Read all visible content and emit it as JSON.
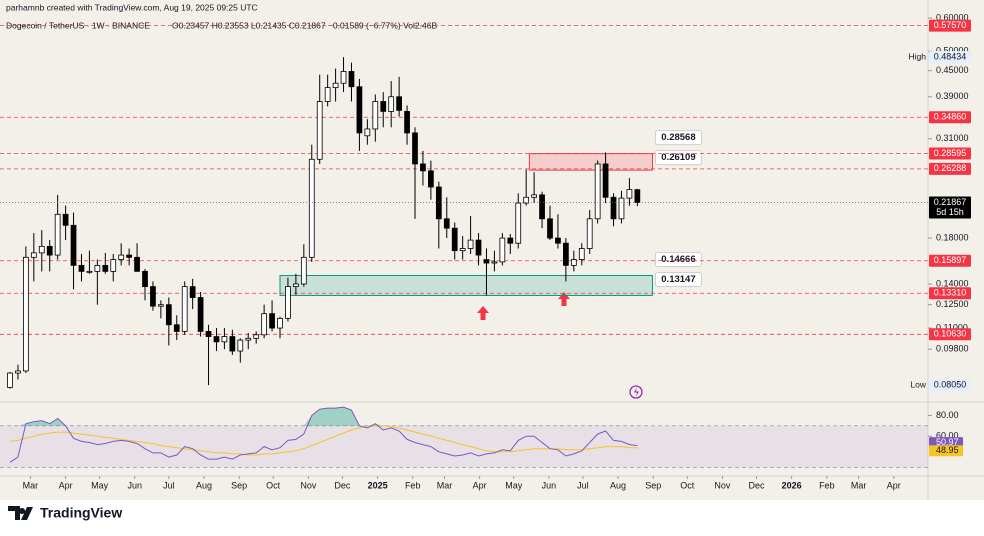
{
  "chart_data": {
    "type": "candlestick",
    "header": "parhamnb created with TradingView.com, Aug 19, 2025 09:25 UTC",
    "legend": "Dogecoin / TetherUS · 1W · BINANCE",
    "ohlc_text": "O0.23457  H0.23553  L0.21435  C0.21867  −0.01589 (−6.77%)  Vol2.46B",
    "brand": "TradingView",
    "log_scale": true,
    "ylim": [
      0.0742,
      0.627
    ],
    "yticks": [
      {
        "value": 0.6,
        "label": "0.60000"
      },
      {
        "value": 0.5,
        "label": "0.50000"
      },
      {
        "value": 0.45,
        "label": "0.45000"
      },
      {
        "value": 0.39,
        "label": "0.39000"
      },
      {
        "value": 0.31,
        "label": "0.31000"
      },
      {
        "value": 0.18,
        "label": "0.18000"
      },
      {
        "value": 0.14,
        "label": "0.14000"
      },
      {
        "value": 0.125,
        "label": "0.12500"
      },
      {
        "value": 0.11,
        "label": "0.11000"
      },
      {
        "value": 0.098,
        "label": "0.09800"
      }
    ],
    "xlim": [
      -1.26,
      115.6
    ],
    "xticks": [
      {
        "value": 2.57,
        "label": "Mar"
      },
      {
        "value": 7,
        "label": "Apr"
      },
      {
        "value": 11.29,
        "label": "May"
      },
      {
        "value": 15.71,
        "label": "Jun"
      },
      {
        "value": 20,
        "label": "Jul"
      },
      {
        "value": 24.43,
        "label": "Aug"
      },
      {
        "value": 28.86,
        "label": "Sep"
      },
      {
        "value": 33.14,
        "label": "Oct"
      },
      {
        "value": 37.57,
        "label": "Nov"
      },
      {
        "value": 41.86,
        "label": "Dec"
      },
      {
        "value": 46.29,
        "label": "2025"
      },
      {
        "value": 50.71,
        "label": "Feb"
      },
      {
        "value": 54.71,
        "label": "Mar"
      },
      {
        "value": 59.14,
        "label": "Apr"
      },
      {
        "value": 63.43,
        "label": "May"
      },
      {
        "value": 67.86,
        "label": "Jun"
      },
      {
        "value": 72.14,
        "label": "Jul"
      },
      {
        "value": 76.57,
        "label": "Aug"
      },
      {
        "value": 81,
        "label": "Sep"
      },
      {
        "value": 85.29,
        "label": "Oct"
      },
      {
        "value": 89.71,
        "label": "Nov"
      },
      {
        "value": 94,
        "label": "Dec"
      },
      {
        "value": 98.43,
        "label": "2026"
      },
      {
        "value": 102.86,
        "label": "Feb"
      },
      {
        "value": 106.86,
        "label": "Mar"
      },
      {
        "value": 111.29,
        "label": "Apr"
      }
    ],
    "up_color": "#ffffff",
    "down_color": "#000000",
    "candles": [
      [
        0.0795,
        0.0865,
        0.079,
        0.086
      ],
      [
        0.086,
        0.09,
        0.083,
        0.087
      ],
      [
        0.087,
        0.172,
        0.086,
        0.162
      ],
      [
        0.162,
        0.185,
        0.142,
        0.166
      ],
      [
        0.166,
        0.188,
        0.15,
        0.172
      ],
      [
        0.172,
        0.178,
        0.15,
        0.164
      ],
      [
        0.164,
        0.228,
        0.16,
        0.205
      ],
      [
        0.205,
        0.215,
        0.178,
        0.193
      ],
      [
        0.193,
        0.207,
        0.136,
        0.155
      ],
      [
        0.155,
        0.165,
        0.142,
        0.15
      ],
      [
        0.15,
        0.168,
        0.148,
        0.15
      ],
      [
        0.15,
        0.16,
        0.125,
        0.155
      ],
      [
        0.155,
        0.166,
        0.148,
        0.15
      ],
      [
        0.15,
        0.165,
        0.142,
        0.16
      ],
      [
        0.16,
        0.175,
        0.155,
        0.164
      ],
      [
        0.164,
        0.17,
        0.155,
        0.162
      ],
      [
        0.162,
        0.175,
        0.15,
        0.15
      ],
      [
        0.15,
        0.152,
        0.128,
        0.138
      ],
      [
        0.138,
        0.142,
        0.121,
        0.124
      ],
      [
        0.124,
        0.128,
        0.116,
        0.125
      ],
      [
        0.125,
        0.13,
        0.1,
        0.112
      ],
      [
        0.112,
        0.118,
        0.103,
        0.108
      ],
      [
        0.108,
        0.142,
        0.106,
        0.138
      ],
      [
        0.138,
        0.144,
        0.122,
        0.13
      ],
      [
        0.13,
        0.134,
        0.105,
        0.108
      ],
      [
        0.108,
        0.112,
        0.0805,
        0.105
      ],
      [
        0.105,
        0.11,
        0.097,
        0.102
      ],
      [
        0.102,
        0.11,
        0.098,
        0.105
      ],
      [
        0.105,
        0.109,
        0.095,
        0.097
      ],
      [
        0.097,
        0.104,
        0.091,
        0.103
      ],
      [
        0.103,
        0.107,
        0.098,
        0.104
      ],
      [
        0.104,
        0.108,
        0.101,
        0.106
      ],
      [
        0.106,
        0.125,
        0.104,
        0.119
      ],
      [
        0.119,
        0.128,
        0.108,
        0.11
      ],
      [
        0.11,
        0.117,
        0.104,
        0.116
      ],
      [
        0.116,
        0.145,
        0.114,
        0.138
      ],
      [
        0.138,
        0.148,
        0.132,
        0.14
      ],
      [
        0.14,
        0.174,
        0.138,
        0.162
      ],
      [
        0.162,
        0.3,
        0.158,
        0.277
      ],
      [
        0.277,
        0.44,
        0.27,
        0.38
      ],
      [
        0.38,
        0.44,
        0.37,
        0.41
      ],
      [
        0.41,
        0.455,
        0.38,
        0.42
      ],
      [
        0.42,
        0.48434,
        0.4,
        0.448
      ],
      [
        0.448,
        0.47,
        0.38,
        0.412
      ],
      [
        0.412,
        0.43,
        0.29,
        0.32
      ],
      [
        0.315,
        0.345,
        0.3,
        0.327
      ],
      [
        0.327,
        0.395,
        0.305,
        0.38
      ],
      [
        0.38,
        0.4,
        0.33,
        0.36
      ],
      [
        0.36,
        0.425,
        0.33,
        0.39
      ],
      [
        0.39,
        0.435,
        0.35,
        0.362
      ],
      [
        0.36,
        0.372,
        0.3,
        0.32
      ],
      [
        0.32,
        0.33,
        0.2,
        0.27
      ],
      [
        0.27,
        0.29,
        0.24,
        0.26
      ],
      [
        0.26,
        0.275,
        0.222,
        0.238
      ],
      [
        0.238,
        0.245,
        0.17,
        0.2
      ],
      [
        0.2,
        0.225,
        0.18,
        0.19
      ],
      [
        0.19,
        0.196,
        0.16,
        0.168
      ],
      [
        0.168,
        0.182,
        0.16,
        0.17
      ],
      [
        0.17,
        0.203,
        0.165,
        0.178
      ],
      [
        0.178,
        0.185,
        0.155,
        0.164
      ],
      [
        0.16,
        0.17,
        0.1315,
        0.157
      ],
      [
        0.157,
        0.168,
        0.15,
        0.158
      ],
      [
        0.158,
        0.185,
        0.155,
        0.18
      ],
      [
        0.18,
        0.184,
        0.165,
        0.175
      ],
      [
        0.175,
        0.23,
        0.17,
        0.218
      ],
      [
        0.218,
        0.262,
        0.215,
        0.225
      ],
      [
        0.225,
        0.258,
        0.218,
        0.228
      ],
      [
        0.228,
        0.232,
        0.19,
        0.2
      ],
      [
        0.2,
        0.215,
        0.178,
        0.18
      ],
      [
        0.18,
        0.205,
        0.17,
        0.175
      ],
      [
        0.175,
        0.18,
        0.142,
        0.155
      ],
      [
        0.155,
        0.168,
        0.15,
        0.16
      ],
      [
        0.16,
        0.175,
        0.155,
        0.17
      ],
      [
        0.17,
        0.21,
        0.165,
        0.2
      ],
      [
        0.2,
        0.275,
        0.195,
        0.27
      ],
      [
        0.27,
        0.2877,
        0.218,
        0.225
      ],
      [
        0.225,
        0.23,
        0.192,
        0.2
      ],
      [
        0.2,
        0.233,
        0.195,
        0.224
      ],
      [
        0.224,
        0.25,
        0.215,
        0.2346
      ],
      [
        0.23457,
        0.23553,
        0.21435,
        0.21867
      ]
    ],
    "level_color": "#f23645",
    "levels": [
      {
        "value": 0.5757,
        "label": "0.57570"
      },
      {
        "value": 0.3486,
        "label": "0.34860"
      },
      {
        "value": 0.28595,
        "label": "0.28595"
      },
      {
        "value": 0.26288,
        "label": "0.26288"
      },
      {
        "value": 0.15897,
        "label": "0.15897"
      },
      {
        "value": 0.1331,
        "label": "0.13310"
      },
      {
        "value": 0.1063,
        "label": "0.10630"
      }
    ],
    "countdown": "5d 15h",
    "high": {
      "text": "High",
      "value": 0.48434,
      "label": "0.48434"
    },
    "low": {
      "text": "Low",
      "value": 0.0805,
      "label": "0.08050"
    },
    "zones": [
      {
        "from": 65.4,
        "to": 80.9,
        "color": "#f23645",
        "low": {
          "value": 0.26109,
          "label": "0.26109"
        },
        "high": {
          "value": 0.28568,
          "label": "0.28568"
        }
      },
      {
        "from": 34,
        "to": 80.9,
        "color": "#089981",
        "low": {
          "value": 0.13147,
          "label": "0.13147"
        },
        "high": {
          "value": 0.14666,
          "label": "0.14666"
        }
      }
    ],
    "rsi": {
      "ylim": [
        21.8,
        90
      ],
      "yticks": [
        {
          "value": 80,
          "label": "80.00"
        },
        {
          "value": 60,
          "label": "60.00"
        }
      ],
      "band": [
        30,
        70
      ],
      "color": "#7e57c2",
      "ma_color": "#f7c325",
      "values": [
        35,
        40,
        72,
        74,
        75,
        72,
        77,
        70,
        58,
        55,
        54,
        52,
        53,
        55,
        56,
        55,
        53,
        48,
        44,
        44,
        40,
        42,
        50,
        48,
        42,
        38,
        38,
        40,
        38,
        42,
        43,
        44,
        50,
        47,
        49,
        56,
        57,
        62,
        80,
        86,
        87,
        87,
        88,
        85,
        70,
        68,
        72,
        66,
        68,
        65,
        57,
        54,
        52,
        50,
        45,
        43,
        41,
        42,
        44,
        41,
        43,
        44,
        47,
        46,
        56,
        60,
        60,
        54,
        48,
        47,
        41,
        43,
        46,
        54,
        62,
        65,
        56,
        55,
        52,
        50.97
      ],
      "ma": [
        55,
        56,
        58,
        60,
        62,
        63,
        64,
        64,
        63,
        62,
        61,
        60,
        59,
        58,
        57,
        56,
        55,
        54,
        53,
        51,
        50,
        49,
        48,
        47,
        46,
        45,
        44,
        44,
        43,
        43,
        42,
        42,
        43,
        43,
        44,
        45,
        46,
        48,
        51,
        54,
        57,
        60,
        63,
        66,
        68,
        69,
        70,
        70,
        69,
        68,
        66,
        64,
        62,
        60,
        58,
        56,
        54,
        52,
        50,
        48,
        46,
        45,
        45,
        45,
        46,
        47,
        48,
        48,
        48,
        48,
        47,
        47,
        47,
        48,
        49,
        50,
        50,
        50,
        49,
        48.95
      ]
    }
  }
}
